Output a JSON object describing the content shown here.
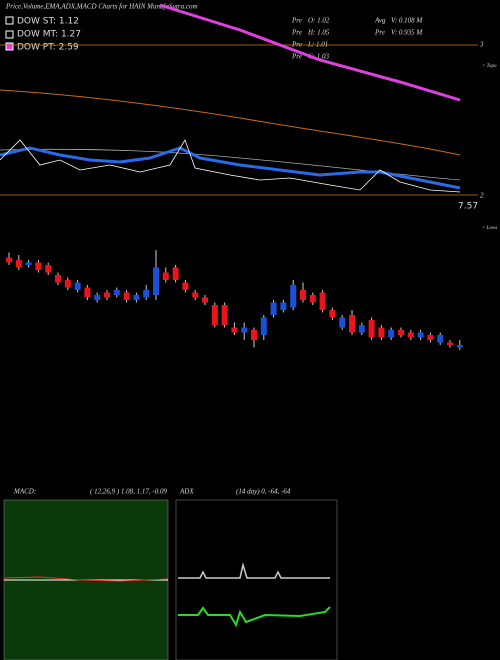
{
  "header": {
    "title": "Price,Volume,EMA,ADX,MACD Charts for HAIN MunafaSutra.com",
    "legend": [
      "DOW ST: 1.12",
      "DOW MT: 1.27",
      "DOW PT: 2.59"
    ],
    "prices": [
      {
        "label": "Pre",
        "value": "O: 1.02"
      },
      {
        "label": "Pre",
        "value": "H: 1.05"
      },
      {
        "label": "Pre",
        "value": "L: 1.01"
      },
      {
        "label": "Pre",
        "value": "C: 1.03"
      }
    ],
    "volumes": [
      {
        "label": "Avg",
        "value": "V: 0.108  M"
      },
      {
        "label": "Pre",
        "value": "V: 0.935  M"
      }
    ],
    "levels": [
      "3",
      "2",
      "7.57"
    ],
    "side_notes": [
      "< Topo",
      "< Lows"
    ]
  },
  "chart_data": {
    "type": "candlestick",
    "ylim": [
      0.93,
      1.45
    ],
    "up_color": "#1a4fd8",
    "down_color": "#e8151b",
    "candles": [
      [
        1.38,
        1.4,
        1.35,
        1.36
      ],
      [
        1.37,
        1.39,
        1.33,
        1.34
      ],
      [
        1.35,
        1.37,
        1.34,
        1.36
      ],
      [
        1.36,
        1.37,
        1.32,
        1.33
      ],
      [
        1.35,
        1.36,
        1.31,
        1.32
      ],
      [
        1.31,
        1.32,
        1.27,
        1.28
      ],
      [
        1.29,
        1.3,
        1.25,
        1.26
      ],
      [
        1.25,
        1.29,
        1.24,
        1.28
      ],
      [
        1.26,
        1.27,
        1.21,
        1.22
      ],
      [
        1.21,
        1.24,
        1.2,
        1.23
      ],
      [
        1.24,
        1.25,
        1.21,
        1.22
      ],
      [
        1.23,
        1.26,
        1.22,
        1.25
      ],
      [
        1.24,
        1.25,
        1.2,
        1.21
      ],
      [
        1.21,
        1.24,
        1.2,
        1.23
      ],
      [
        1.22,
        1.27,
        1.21,
        1.25
      ],
      [
        1.23,
        1.41,
        1.21,
        1.34
      ],
      [
        1.32,
        1.34,
        1.28,
        1.29
      ],
      [
        1.34,
        1.35,
        1.28,
        1.29
      ],
      [
        1.28,
        1.29,
        1.24,
        1.25
      ],
      [
        1.24,
        1.25,
        1.21,
        1.22
      ],
      [
        1.22,
        1.23,
        1.19,
        1.2
      ],
      [
        1.19,
        1.2,
        1.1,
        1.11
      ],
      [
        1.19,
        1.2,
        1.1,
        1.11
      ],
      [
        1.1,
        1.12,
        1.07,
        1.08
      ],
      [
        1.08,
        1.12,
        1.05,
        1.1
      ],
      [
        1.09,
        1.1,
        1.02,
        1.05
      ],
      [
        1.07,
        1.15,
        1.05,
        1.14
      ],
      [
        1.15,
        1.21,
        1.14,
        1.2
      ],
      [
        1.17,
        1.21,
        1.16,
        1.2
      ],
      [
        1.18,
        1.29,
        1.17,
        1.27
      ],
      [
        1.25,
        1.28,
        1.2,
        1.21
      ],
      [
        1.23,
        1.24,
        1.19,
        1.2
      ],
      [
        1.24,
        1.25,
        1.16,
        1.17
      ],
      [
        1.17,
        1.18,
        1.13,
        1.14
      ],
      [
        1.1,
        1.15,
        1.09,
        1.14
      ],
      [
        1.15,
        1.17,
        1.07,
        1.08
      ],
      [
        1.08,
        1.12,
        1.07,
        1.11
      ],
      [
        1.13,
        1.14,
        1.05,
        1.06
      ],
      [
        1.1,
        1.11,
        1.05,
        1.06
      ],
      [
        1.06,
        1.1,
        1.05,
        1.09
      ],
      [
        1.09,
        1.1,
        1.06,
        1.07
      ],
      [
        1.08,
        1.09,
        1.05,
        1.06
      ],
      [
        1.06,
        1.09,
        1.05,
        1.08
      ],
      [
        1.07,
        1.08,
        1.04,
        1.05
      ],
      [
        1.04,
        1.08,
        1.03,
        1.07
      ],
      [
        1.04,
        1.05,
        1.02,
        1.03
      ],
      [
        1.02,
        1.05,
        1.01,
        1.03
      ]
    ]
  },
  "macd": {
    "label": "MACD:",
    "params": "( 12,26,9 ) 1.08, 1.17, -0.09"
  },
  "adx": {
    "label": "ADX",
    "params": "(14  day) 0, -64, -64"
  }
}
